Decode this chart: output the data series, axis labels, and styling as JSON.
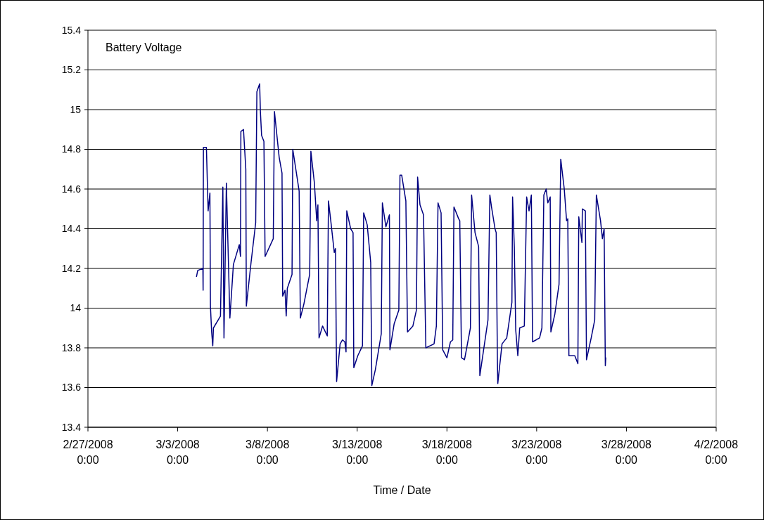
{
  "chart_data": {
    "type": "line",
    "title": "Battery Voltage",
    "xlabel": "Time / Date",
    "xlim": [
      "2008-02-27",
      "2008-04-02"
    ],
    "xticks": [
      {
        "value": "2008-02-27",
        "label": "2/27/2008 0:00"
      },
      {
        "value": "2008-03-03",
        "label": "3/3/2008 0:00"
      },
      {
        "value": "2008-03-08",
        "label": "3/8/2008 0:00"
      },
      {
        "value": "2008-03-13",
        "label": "3/13/2008 0:00"
      },
      {
        "value": "2008-03-18",
        "label": "3/18/2008 0:00"
      },
      {
        "value": "2008-03-23",
        "label": "3/23/2008 0:00"
      },
      {
        "value": "2008-03-28",
        "label": "3/28/2008 0:00"
      },
      {
        "value": "2008-04-02",
        "label": "4/2/2008 0:00"
      }
    ],
    "ylim": [
      13.4,
      15.4
    ],
    "yticks": [
      13.4,
      13.6,
      13.8,
      14,
      14.2,
      14.4,
      14.6,
      14.8,
      15,
      15.2,
      15.4
    ],
    "grid": "y",
    "series": [
      {
        "color": "#000080",
        "x": [
          "2008-03-04T01:12",
          "2008-03-04T02:48",
          "2008-03-04T09:42",
          "2008-03-04T10:00",
          "2008-03-04T10:24",
          "2008-03-04T14:24",
          "2008-03-04T16:42",
          "2008-03-04T19:06",
          "2008-03-04T19:48",
          "2008-03-04T21:24",
          "2008-03-04T22:54",
          "2008-03-04T23:48",
          "2008-03-05T09:12",
          "2008-03-05T12:24",
          "2008-03-05T13:54",
          "2008-03-05T17:06",
          "2008-03-05T21:48",
          "2008-03-06T02:30",
          "2008-03-06T10:24",
          "2008-03-06T12:00",
          "2008-03-06T12:30",
          "2008-03-06T16:00",
          "2008-03-06T19:06",
          "2008-03-06T19:48",
          "2008-03-07T02:06",
          "2008-03-07T08:18",
          "2008-03-07T09:54",
          "2008-03-07T13:36",
          "2008-03-07T14:36",
          "2008-03-07T16:12",
          "2008-03-07T19:18",
          "2008-03-07T20:54",
          "2008-03-08T07:48",
          "2008-03-08T09:24",
          "2008-03-08T15:42",
          "2008-03-08T19:30",
          "2008-03-08T20:24",
          "2008-03-08T23:30",
          "2008-03-09T01:06",
          "2008-03-09T02:36",
          "2008-03-09T08:54",
          "2008-03-09T09:54",
          "2008-03-09T16:48",
          "2008-03-09T18:24",
          "2008-03-09T20:00",
          "2008-03-10T00:42",
          "2008-03-10T08:30",
          "2008-03-10T10:06",
          "2008-03-10T14:48",
          "2008-03-10T17:54",
          "2008-03-10T19:30",
          "2008-03-10T21:00",
          "2008-03-11T01:42",
          "2008-03-11T08:00",
          "2008-03-11T09:36",
          "2008-03-11T12:42",
          "2008-03-11T17:24",
          "2008-03-11T19:00",
          "2008-03-11T20:30",
          "2008-03-12T01:12",
          "2008-03-12T04:24",
          "2008-03-12T07:30",
          "2008-03-12T09:06",
          "2008-03-12T10:06",
          "2008-03-12T15:18",
          "2008-03-12T18:30",
          "2008-03-12T19:30",
          "2008-03-13T00:48",
          "2008-03-13T07:06",
          "2008-03-13T08:42",
          "2008-03-13T13:24",
          "2008-03-13T18:06",
          "2008-03-13T19:36",
          "2008-03-14T00:18",
          "2008-03-14T08:12",
          "2008-03-14T09:42",
          "2008-03-14T14:24",
          "2008-03-14T19:06",
          "2008-03-14T19:48",
          "2008-03-15T01:24",
          "2008-03-15T07:42",
          "2008-03-15T09:12",
          "2008-03-15T11:30",
          "2008-03-15T17:06",
          "2008-03-15T19:18",
          "2008-03-16T02:30",
          "2008-03-16T07:12",
          "2008-03-16T08:48",
          "2008-03-16T12:00",
          "2008-03-16T16:42",
          "2008-03-16T19:48",
          "2008-03-17T06:48",
          "2008-03-17T09:54",
          "2008-03-17T12:06",
          "2008-03-17T16:12",
          "2008-03-17T18:24",
          "2008-03-18T00:00",
          "2008-03-18T04:42",
          "2008-03-18T07:48",
          "2008-03-18T09:24",
          "2008-03-18T15:42",
          "2008-03-18T17:12",
          "2008-03-18T19:30",
          "2008-03-18T23:30",
          "2008-03-19T07:24",
          "2008-03-19T09:00",
          "2008-03-19T13:36",
          "2008-03-19T18:24",
          "2008-03-19T20:00",
          "2008-03-20T06:54",
          "2008-03-20T09:24",
          "2008-03-20T11:36",
          "2008-03-20T16:18",
          "2008-03-20T17:54",
          "2008-03-20T19:30",
          "2008-03-20T20:00",
          "2008-03-21T01:42",
          "2008-03-21T08:00",
          "2008-03-21T14:54",
          "2008-03-21T15:48",
          "2008-03-21T18:06",
          "2008-03-21T20:00",
          "2008-03-21T22:48",
          "2008-03-22T01:18",
          "2008-03-22T07:30",
          "2008-03-22T10:36",
          "2008-03-22T13:48",
          "2008-03-22T16:54",
          "2008-03-22T18:30",
          "2008-03-23T03:54",
          "2008-03-23T07:00",
          "2008-03-23T09:36",
          "2008-03-23T12:42",
          "2008-03-23T14:54",
          "2008-03-23T18:06",
          "2008-03-23T19:00",
          "2008-03-24T00:18",
          "2008-03-24T05:54",
          "2008-03-24T08:12",
          "2008-03-24T12:54",
          "2008-03-24T16:00",
          "2008-03-24T17:36",
          "2008-03-24T19:06",
          "2008-03-25T03:00",
          "2008-03-25T07:06",
          "2008-03-25T08:18",
          "2008-03-25T12:30",
          "2008-03-25T13:06",
          "2008-03-25T17:06",
          "2008-03-25T18:36",
          "2008-03-26T00:54",
          "2008-03-26T05:36",
          "2008-03-26T07:48",
          "2008-03-26T13:24",
          "2008-03-26T15:54",
          "2008-03-26T18:12",
          "2008-03-26T19:48",
          "2008-03-26T20:24"
        ],
        "values": [
          14.16,
          14.19,
          14.2,
          14.09,
          14.81,
          14.81,
          14.49,
          14.58,
          14.01,
          13.88,
          13.81,
          13.9,
          13.96,
          14.61,
          13.85,
          14.63,
          13.95,
          14.22,
          14.32,
          14.26,
          14.89,
          14.9,
          14.7,
          14.01,
          14.23,
          14.43,
          15.09,
          15.13,
          14.99,
          14.87,
          14.84,
          14.26,
          14.35,
          14.99,
          14.76,
          14.68,
          14.06,
          14.09,
          13.96,
          14.1,
          14.17,
          14.8,
          14.63,
          14.59,
          13.95,
          14.02,
          14.17,
          14.79,
          14.63,
          14.44,
          14.52,
          13.85,
          13.91,
          13.86,
          14.54,
          14.44,
          14.28,
          14.3,
          13.63,
          13.82,
          13.84,
          13.83,
          13.78,
          14.49,
          14.4,
          14.38,
          13.7,
          13.76,
          13.81,
          14.48,
          14.42,
          14.23,
          13.61,
          13.69,
          13.87,
          14.53,
          14.41,
          14.47,
          13.79,
          13.92,
          13.99,
          14.67,
          14.67,
          14.54,
          13.88,
          13.91,
          13.99,
          14.66,
          14.52,
          14.47,
          13.8,
          13.82,
          13.91,
          14.53,
          14.48,
          13.79,
          13.75,
          13.83,
          13.84,
          14.51,
          14.45,
          14.44,
          13.75,
          13.74,
          13.9,
          14.57,
          14.38,
          14.31,
          13.66,
          13.94,
          14.57,
          14.51,
          14.4,
          14.38,
          13.74,
          13.62,
          13.82,
          13.85,
          14.03,
          14.56,
          14.31,
          13.89,
          13.76,
          13.9,
          13.91,
          14.56,
          14.49,
          14.57,
          13.83,
          13.85,
          13.9,
          14.57,
          14.6,
          14.53,
          14.56,
          13.88,
          13.97,
          14.12,
          14.75,
          14.6,
          14.44,
          14.45,
          13.76,
          13.76,
          13.72,
          14.46,
          14.33,
          14.5,
          14.49,
          13.74,
          13.85,
          13.94,
          14.57,
          14.44,
          14.35,
          14.4,
          13.71,
          13.75
        ]
      }
    ]
  }
}
